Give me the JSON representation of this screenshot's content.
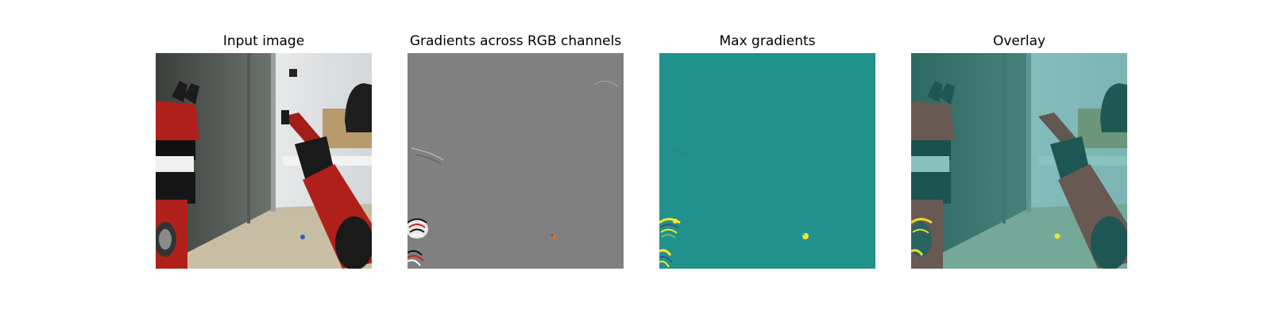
{
  "panels": [
    {
      "title": "Input image",
      "kind": "input"
    },
    {
      "title": "Gradients across RGB channels",
      "kind": "gradients"
    },
    {
      "title": "Max gradients",
      "kind": "max"
    },
    {
      "title": "Overlay",
      "kind": "overlay"
    }
  ],
  "colors": {
    "background": "#ffffff",
    "gradient_gray": "#808080",
    "viridis_mid": "#21918c",
    "viridis_high": "#fde725",
    "robot_red": "#b0201a"
  }
}
